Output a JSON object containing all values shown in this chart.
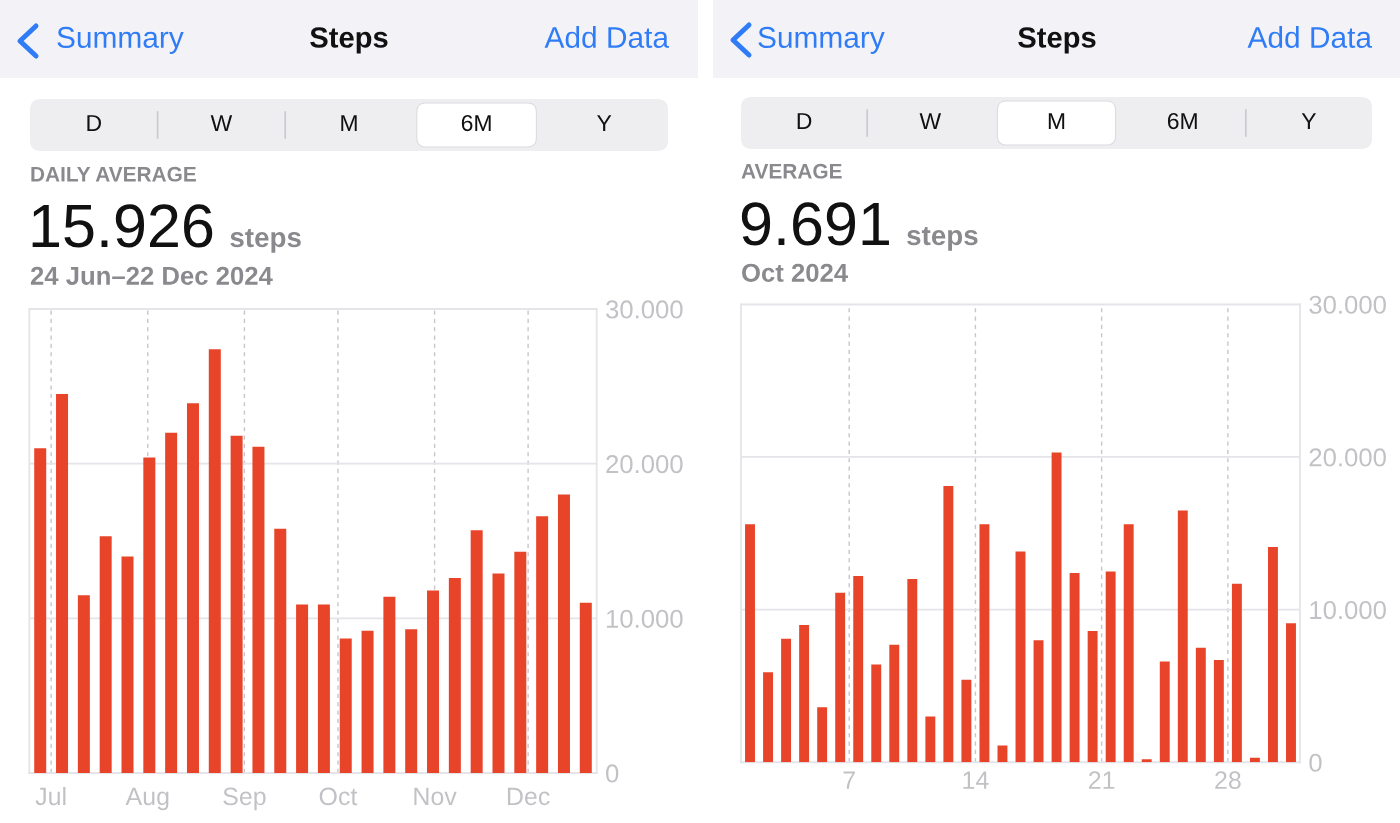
{
  "chart_data": [
    {
      "type": "bar",
      "title": "Steps",
      "annotations": [
        "Summary",
        "Add Data",
        "D",
        "W",
        "M",
        "6M",
        "Y",
        "DAILY AVERAGE",
        "15.926",
        "steps",
        "24 Jun–22 Dec 2024"
      ],
      "x": [
        "2024-06-27T12:00",
        "2024-07-04T12:00",
        "2024-07-11T12:00",
        "2024-07-18T12:00",
        "2024-07-25T12:00",
        "2024-08-01T12:00",
        "2024-08-08T12:00",
        "2024-08-15T12:00",
        "2024-08-22T12:00",
        "2024-08-29T12:00",
        "2024-09-05T12:00",
        "2024-09-12T12:00",
        "2024-09-19T12:00",
        "2024-09-26T12:00",
        "2024-10-03T12:00",
        "2024-10-10T12:00",
        "2024-10-17T12:00",
        "2024-10-24T12:00",
        "2024-10-31T12:00",
        "2024-11-07T12:00",
        "2024-11-14T12:00",
        "2024-11-21T12:00",
        "2024-11-28T12:00",
        "2024-12-05T12:00",
        "2024-12-12T12:00",
        "2024-12-19T12:00"
      ],
      "values": [
        21000,
        24500,
        11500,
        15300,
        14000,
        20400,
        22000,
        23900,
        27400,
        21800,
        21100,
        15800,
        10900,
        10900,
        8700,
        9200,
        11400,
        9300,
        11800,
        12600,
        15700,
        12900,
        14300,
        16600,
        18000,
        11000
      ],
      "color": "#e8442a",
      "xlim": [
        "2024-06-24",
        "2024-12-23"
      ],
      "xticks": [
        {
          "value": "2024-07-01",
          "label": "Jul"
        },
        {
          "value": "2024-08-01",
          "label": "Aug"
        },
        {
          "value": "2024-09-01",
          "label": "Sep"
        },
        {
          "value": "2024-10-01",
          "label": "Oct"
        },
        {
          "value": "2024-11-01",
          "label": "Nov"
        },
        {
          "value": "2024-12-01",
          "label": "Dec"
        }
      ],
      "ylim": [
        0,
        30000
      ],
      "yticks": [
        0,
        {
          "value": 10000,
          "label": "10.000"
        },
        {
          "value": 20000,
          "label": "20.000"
        },
        {
          "value": 30000,
          "label": "30.000"
        }
      ],
      "grid": true
    },
    {
      "type": "bar",
      "title": "Steps",
      "annotations": [
        "Summary",
        "Add Data",
        "D",
        "W",
        "M",
        "6M",
        "Y",
        "AVERAGE",
        "9.691",
        "steps",
        "Oct 2024"
      ],
      "x": [
        "2024-10-01T12:00",
        "2024-10-02T12:00",
        "2024-10-03T12:00",
        "2024-10-04T12:00",
        "2024-10-05T12:00",
        "2024-10-06T12:00",
        "2024-10-07T12:00",
        "2024-10-08T12:00",
        "2024-10-09T12:00",
        "2024-10-10T12:00",
        "2024-10-11T12:00",
        "2024-10-12T12:00",
        "2024-10-13T12:00",
        "2024-10-14T12:00",
        "2024-10-15T12:00",
        "2024-10-16T12:00",
        "2024-10-17T12:00",
        "2024-10-18T12:00",
        "2024-10-19T12:00",
        "2024-10-20T12:00",
        "2024-10-21T12:00",
        "2024-10-22T12:00",
        "2024-10-23T12:00",
        "2024-10-24T12:00",
        "2024-10-25T12:00",
        "2024-10-26T12:00",
        "2024-10-27T12:00",
        "2024-10-28T12:00",
        "2024-10-29T12:00",
        "2024-10-30T12:00",
        "2024-10-31T12:00"
      ],
      "values": [
        15600,
        5900,
        8100,
        9000,
        3600,
        11100,
        12200,
        6400,
        7700,
        12000,
        3000,
        18100,
        5400,
        15600,
        1100,
        13800,
        8000,
        20300,
        12400,
        8600,
        12500,
        15600,
        200,
        6600,
        16500,
        7500,
        6700,
        11700,
        300,
        14100,
        9100
      ],
      "color": "#e8442a",
      "xlim": [
        "2024-10-01",
        "2024-11-01"
      ],
      "xticks": [
        {
          "value": "2024-10-07",
          "label": "7"
        },
        {
          "value": "2024-10-14",
          "label": "14"
        },
        {
          "value": "2024-10-21",
          "label": "21"
        },
        {
          "value": "2024-10-28",
          "label": "28"
        }
      ],
      "ylim": [
        0,
        30000
      ],
      "yticks": [
        0,
        {
          "value": 10000,
          "label": "10.000"
        },
        {
          "value": 20000,
          "label": "20.000"
        },
        {
          "value": 30000,
          "label": "30.000"
        }
      ],
      "grid": true
    }
  ]
}
